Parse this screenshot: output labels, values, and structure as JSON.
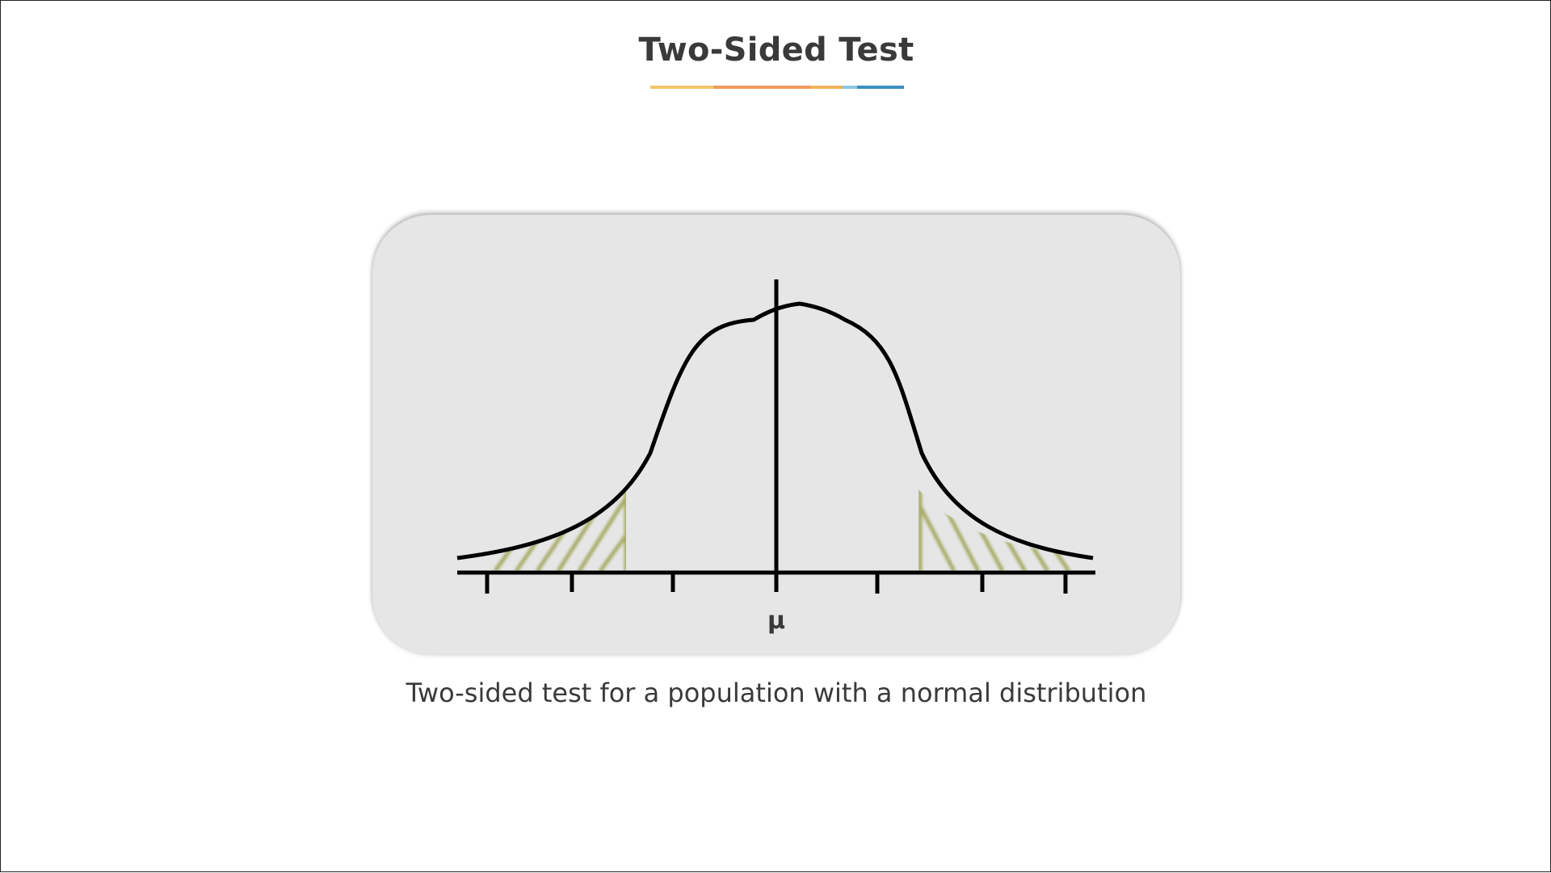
{
  "title": "Two-Sided Test",
  "title_underline_colors": [
    "#f5c46b",
    "#ee9a5c",
    "#f2b25a",
    "#8cc8e4",
    "#3b8fc1"
  ],
  "diagram": {
    "axis_center_label": "μ",
    "hatch_color": "#a9ad6a",
    "curve_color": "#000000",
    "panel_color": "#e6e6e6"
  },
  "caption": "Two-sided test for a population with a normal distribution"
}
